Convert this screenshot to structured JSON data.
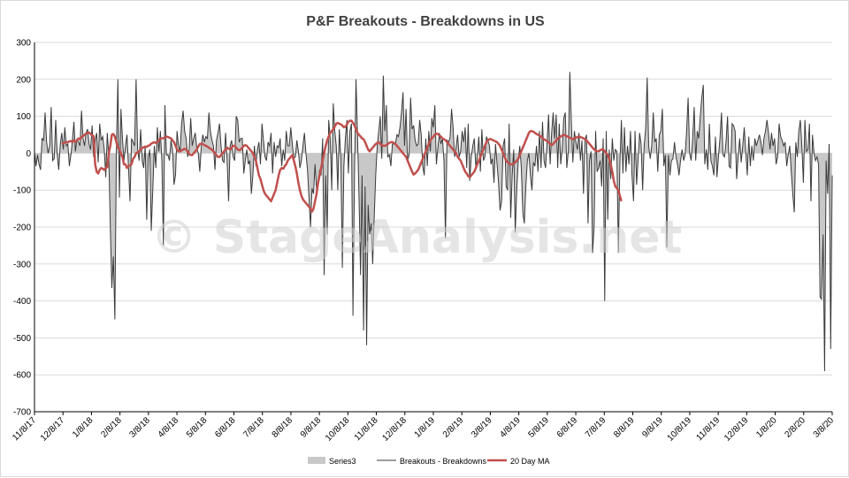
{
  "chart_data": {
    "type": "area",
    "title": "P&F Breakouts - Breakdowns in US",
    "watermark": "© StageAnalysis.net",
    "ylim": [
      -700,
      300
    ],
    "y_ticks": [
      300,
      200,
      100,
      0,
      -100,
      -200,
      -300,
      -400,
      -500,
      -600,
      -700
    ],
    "x_tick_labels": [
      "11/8/17",
      "12/8/17",
      "1/8/18",
      "2/8/18",
      "3/8/18",
      "4/8/18",
      "5/8/18",
      "6/8/18",
      "7/8/18",
      "8/8/18",
      "9/8/18",
      "10/8/18",
      "11/8/18",
      "12/8/18",
      "1/8/19",
      "2/8/19",
      "3/8/19",
      "4/8/19",
      "5/8/19",
      "6/8/19",
      "7/8/19",
      "8/8/19",
      "9/8/19",
      "10/8/19",
      "11/8/19",
      "12/8/19",
      "1/8/20",
      "2/8/20",
      "3/8/20"
    ],
    "grid": true,
    "legend_position": "bottom",
    "legend": [
      "Series3",
      "Breakouts - Breakdowns",
      "20 Day MA"
    ],
    "colors": {
      "series3": "#c8c8c8",
      "breakouts": "#3a3a3a",
      "ma": "#c0504d",
      "grid": "#d9d9d9",
      "axis": "#000000"
    },
    "series": [
      {
        "name": "Breakouts - Breakdowns",
        "values": [
          0,
          -35,
          -5,
          -30,
          -45,
          40,
          35,
          110,
          30,
          0,
          20,
          125,
          -20,
          -15,
          90,
          -5,
          -45,
          25,
          55,
          10,
          70,
          20,
          25,
          -35,
          -5,
          35,
          85,
          5,
          40,
          30,
          20,
          115,
          40,
          20,
          55,
          65,
          25,
          10,
          75,
          -10,
          35,
          55,
          -25,
          80,
          35,
          45,
          10,
          -65,
          55,
          -10,
          -200,
          -365,
          -280,
          -450,
          10,
          200,
          -120,
          120,
          40,
          -20,
          20,
          50,
          -40,
          -130,
          40,
          30,
          20,
          200,
          10,
          -20,
          65,
          -20,
          -40,
          20,
          -180,
          -15,
          10,
          -210,
          -100,
          20,
          -40,
          70,
          5,
          60,
          -20,
          -250,
          130,
          -5,
          -5,
          -20,
          35,
          10,
          -85,
          -60,
          60,
          20,
          5,
          80,
          115,
          60,
          40,
          -10,
          10,
          95,
          20,
          40,
          55,
          15,
          0,
          -50,
          20,
          50,
          30,
          45,
          40,
          110,
          60,
          35,
          20,
          -45,
          35,
          55,
          80,
          20,
          -20,
          -25,
          55,
          -20,
          -130,
          20,
          35,
          -10,
          -20,
          100,
          90,
          30,
          40,
          40,
          -55,
          -20,
          10,
          -30,
          -20,
          -110,
          -60,
          20,
          -35,
          10,
          30,
          -30,
          80,
          35,
          -10,
          -20,
          30,
          20,
          55,
          -55,
          30,
          -10,
          20,
          15,
          40,
          -35,
          10,
          -20,
          60,
          20,
          20,
          70,
          25,
          -15,
          -10,
          35,
          5,
          -40,
          -20,
          20,
          55,
          0,
          -45,
          -120,
          -200,
          -95,
          -110,
          -30,
          -100,
          -85,
          -45,
          -60,
          40,
          -330,
          -60,
          -220,
          90,
          40,
          -100,
          135,
          60,
          20,
          -100,
          65,
          -15,
          -310,
          -35,
          40,
          90,
          -55,
          60,
          80,
          -440,
          -60,
          200,
          50,
          -120,
          -330,
          -60,
          -480,
          -90,
          -520,
          -140,
          -220,
          -190,
          -300,
          -175,
          -60,
          20,
          60,
          100,
          -15,
          210,
          60,
          130,
          -10,
          -5,
          -35,
          25,
          25,
          25,
          50,
          45,
          70,
          110,
          165,
          20,
          120,
          -20,
          -5,
          150,
          65,
          75,
          35,
          20,
          25,
          90,
          50,
          -35,
          -60,
          40,
          -35,
          60,
          5,
          95,
          70,
          130,
          -30,
          15,
          55,
          25,
          40,
          -20,
          -230,
          35,
          30,
          40,
          120,
          70,
          -10,
          15,
          50,
          -10,
          5,
          60,
          30,
          70,
          -40,
          80,
          -75,
          -10,
          20,
          40,
          -40,
          -10,
          45,
          -50,
          65,
          -20,
          -10,
          45,
          35,
          20,
          -30,
          -15,
          -80,
          25,
          -30,
          -80,
          -155,
          -130,
          20,
          40,
          -90,
          -100,
          80,
          -175,
          -60,
          10,
          -215,
          -100,
          -20,
          20,
          -40,
          -160,
          -190,
          -90,
          -20,
          0,
          -60,
          -100,
          -25,
          -35,
          20,
          -50,
          60,
          -40,
          85,
          -20,
          -40,
          30,
          105,
          -30,
          55,
          110,
          40,
          105,
          -40,
          80,
          -30,
          15,
          95,
          110,
          -40,
          5,
          220,
          85,
          -25,
          60,
          30,
          10,
          55,
          -20,
          35,
          -110,
          35,
          50,
          -190,
          -20,
          5,
          -270,
          -200,
          60,
          -50,
          -40,
          -20,
          -90,
          40,
          -400,
          60,
          -180,
          10,
          -70,
          40,
          -20,
          10,
          5,
          -270,
          -30,
          90,
          -55,
          70,
          -50,
          20,
          -30,
          60,
          -60,
          -130,
          60,
          -85,
          -20,
          55,
          25,
          -100,
          20,
          65,
          205,
          20,
          -15,
          20,
          110,
          30,
          40,
          -50,
          50,
          60,
          120,
          -35,
          -5,
          -255,
          -5,
          -60,
          -20,
          -15,
          30,
          -10,
          -30,
          -60,
          -20,
          10,
          -20,
          -5,
          60,
          150,
          0,
          -20,
          40,
          125,
          -20,
          60,
          40,
          100,
          150,
          185,
          -30,
          10,
          -45,
          80,
          -20,
          -35,
          -60,
          45,
          -65,
          -10,
          40,
          110,
          -5,
          -10,
          30,
          100,
          -35,
          -40,
          80,
          75,
          60,
          -70,
          -10,
          40,
          -25,
          20,
          70,
          5,
          -60,
          45,
          -35,
          20,
          -20,
          40,
          20,
          35,
          50,
          30,
          -5,
          40,
          60,
          90,
          55,
          10,
          55,
          20,
          40,
          -30,
          -10,
          80,
          45,
          35,
          20,
          30,
          -35,
          -5,
          20,
          -50,
          -110,
          -160,
          30,
          -10,
          60,
          90,
          20,
          -80,
          90,
          5,
          10,
          80,
          -130,
          50,
          0,
          -20,
          -10,
          -30,
          -390,
          -395,
          -220,
          -590,
          -20,
          -110,
          25,
          -530,
          -60
        ]
      },
      {
        "name": "20 Day MA",
        "x_start_index": 18,
        "values": [
          25,
          27,
          29,
          30,
          30,
          32,
          33,
          30,
          35,
          31,
          34,
          40,
          38,
          44,
          46,
          50,
          53,
          55,
          56,
          52,
          48,
          46,
          -30,
          -50,
          -55,
          -45,
          -40,
          -42,
          -45,
          -40,
          -38,
          0,
          20,
          50,
          52,
          45,
          30,
          15,
          10,
          0,
          -10,
          -30,
          -30,
          -40,
          -35,
          -33,
          -30,
          -15,
          -10,
          0,
          2,
          5,
          10,
          14,
          16,
          18,
          17,
          20,
          22,
          26,
          28,
          30,
          28,
          30,
          35,
          40,
          40,
          41,
          42,
          45,
          44,
          42,
          40,
          35,
          30,
          20,
          10,
          5,
          5,
          8,
          10,
          12,
          10,
          5,
          -2,
          -5,
          -5,
          0,
          5,
          10,
          18,
          25,
          26,
          25,
          22,
          20,
          18,
          15,
          12,
          10,
          5,
          0,
          -5,
          -10,
          -10,
          -5,
          0,
          5,
          10,
          15,
          12,
          10,
          15,
          20,
          20,
          15,
          10,
          8,
          10,
          15,
          20,
          22,
          20,
          15,
          10,
          5,
          0,
          -10,
          -20,
          -40,
          -60,
          -70,
          -85,
          -100,
          -110,
          -115,
          -120,
          -125,
          -130,
          -120,
          -110,
          -100,
          -80,
          -60,
          -45,
          -40,
          -42,
          -35,
          -30,
          -20,
          -15,
          -10,
          -5,
          -20,
          -35,
          -55,
          -80,
          -100,
          -115,
          -125,
          -130,
          -135,
          -140,
          -145,
          -150,
          -158,
          -150,
          -130,
          -110,
          -80,
          -60,
          -40,
          -20,
          0,
          20,
          35,
          45,
          55,
          60,
          65,
          72,
          80,
          82,
          80,
          78,
          75,
          70,
          72,
          78,
          85,
          88,
          88,
          82,
          75,
          65,
          55,
          50,
          45,
          40,
          38,
          30,
          20,
          10,
          5,
          10,
          15,
          20,
          25,
          28,
          30,
          25,
          22,
          20,
          20,
          22,
          25,
          28,
          30,
          30,
          28,
          25,
          20,
          15,
          10,
          5,
          0,
          -5,
          -10,
          -20,
          -30,
          -40,
          -50,
          -58,
          -55,
          -50,
          -45,
          -35,
          -25,
          -15,
          -5,
          5,
          15,
          25,
          35,
          40,
          45,
          50,
          53,
          52,
          48,
          45,
          40,
          38,
          35,
          30,
          25,
          20,
          15,
          10,
          5,
          0,
          -10,
          -15,
          -20,
          -30,
          -40,
          -50,
          -55,
          -62,
          -65,
          -60,
          -55,
          -50,
          -40,
          -30,
          -20,
          -10,
          0,
          10,
          20,
          30,
          35,
          38,
          38,
          36,
          34,
          32,
          30,
          25,
          20,
          10,
          0,
          -10,
          -20,
          -25,
          -28,
          -30,
          -30,
          -28,
          -25,
          -20,
          -15,
          -5,
          5,
          15,
          25,
          35,
          45,
          55,
          60,
          60,
          58,
          55,
          52,
          50,
          48,
          45,
          40,
          38,
          35,
          33,
          30,
          25,
          22,
          25,
          30,
          35,
          40,
          42,
          45,
          48,
          50,
          48,
          46,
          44,
          42,
          40,
          38,
          40,
          42,
          44,
          45,
          44,
          42,
          40,
          38,
          35,
          30,
          25,
          20,
          15,
          10,
          8,
          5,
          5,
          8,
          10,
          10,
          5,
          0,
          -5,
          -15,
          -30,
          -50,
          -75,
          -90,
          -95,
          -100,
          -115,
          -130
        ]
      }
    ]
  }
}
